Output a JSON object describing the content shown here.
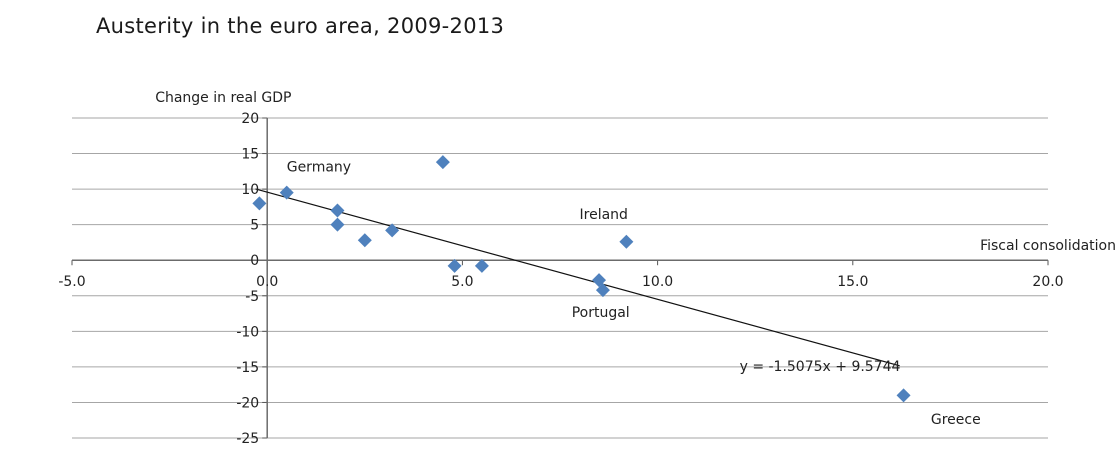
{
  "chart_data": {
    "type": "scatter",
    "title": "Austerity in the euro area, 2009-2013",
    "xlabel": "Fiscal consolidation",
    "ylabel": "Change in real GDP",
    "xlim": [
      -5,
      20
    ],
    "ylim": [
      -25,
      20
    ],
    "x_ticks": [
      "-5.0",
      "0.0",
      "5.0",
      "10.0",
      "15.0",
      "20.0"
    ],
    "y_ticks": [
      "20",
      "15",
      "10",
      "5",
      "0",
      "-5",
      "-10",
      "-15",
      "-20",
      "-25"
    ],
    "grid": true,
    "marker_color": "#4f81bd",
    "points": [
      {
        "x": -0.2,
        "y": 8.0
      },
      {
        "x": 0.5,
        "y": 9.5
      },
      {
        "x": 1.8,
        "y": 7.0
      },
      {
        "x": 1.8,
        "y": 5.0
      },
      {
        "x": 2.5,
        "y": 2.8
      },
      {
        "x": 3.2,
        "y": 4.2
      },
      {
        "x": 4.5,
        "y": 13.8
      },
      {
        "x": 4.8,
        "y": -0.8
      },
      {
        "x": 5.5,
        "y": -0.8
      },
      {
        "x": 8.5,
        "y": -2.8
      },
      {
        "x": 8.6,
        "y": -4.2
      },
      {
        "x": 9.2,
        "y": 2.6
      },
      {
        "x": 16.3,
        "y": -19.0
      }
    ],
    "trendline": {
      "slope": -1.5075,
      "intercept": 9.5744,
      "x_range": [
        -0.3,
        16.2
      ],
      "label": "y = -1.5075x + 9.5744"
    },
    "annotations": [
      {
        "text": "Germany",
        "x": 0.5,
        "y": 12.5
      },
      {
        "text": "Ireland",
        "x": 8.0,
        "y": 5.8
      },
      {
        "text": "Portugal",
        "x": 7.8,
        "y": -8.0
      },
      {
        "text": "Greece",
        "x": 17.0,
        "y": -23.0
      }
    ]
  }
}
